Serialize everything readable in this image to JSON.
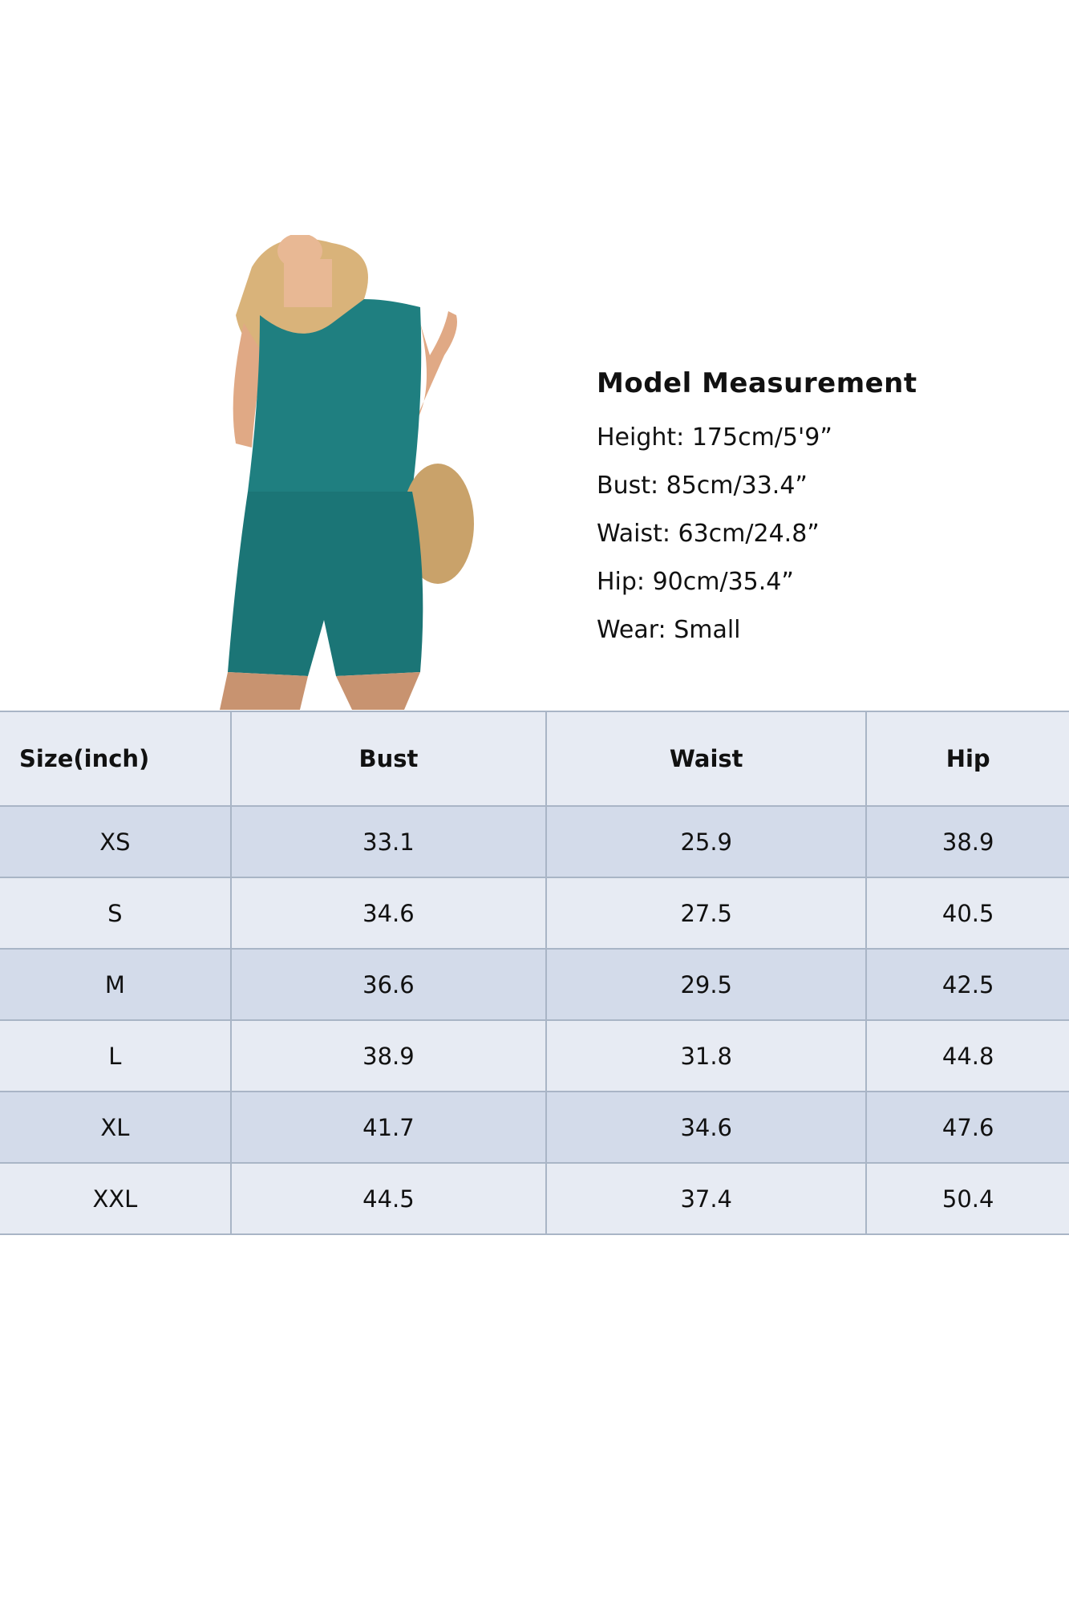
{
  "model_measurement": {
    "title": "Model Measurement",
    "lines": [
      "Height: 175cm/5'9”",
      "Bust: 85cm/33.4”",
      "Waist: 63cm/24.8”",
      "Hip: 90cm/35.4”",
      "Wear: Small"
    ]
  },
  "colors": {
    "garment": "#1f7f80",
    "row_dark": "#d3dbea",
    "row_light": "#e7ebf3",
    "grid": "#a9b5c6"
  },
  "size_table": {
    "headers": [
      "Size(inch)",
      "Bust",
      "Waist",
      "Hip"
    ],
    "rows": [
      [
        "XS",
        "33.1",
        "25.9",
        "38.9"
      ],
      [
        "S",
        "34.6",
        "27.5",
        "40.5"
      ],
      [
        "M",
        "36.6",
        "29.5",
        "42.5"
      ],
      [
        "L",
        "38.9",
        "31.8",
        "44.8"
      ],
      [
        "XL",
        "41.7",
        "34.6",
        "47.6"
      ],
      [
        "XXL",
        "44.5",
        "37.4",
        "50.4"
      ]
    ]
  }
}
